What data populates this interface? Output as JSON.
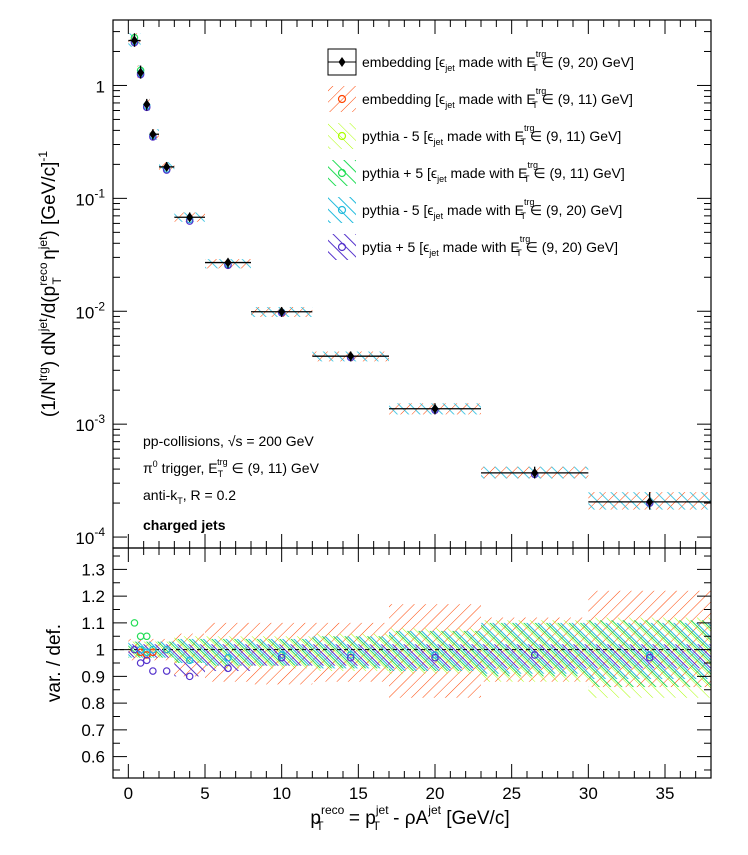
{
  "chart_data": [
    {
      "type": "scatter",
      "panel": "top",
      "y_scale": "log",
      "ylim": [
        8e-05,
        3.8
      ],
      "xlim": [
        -1,
        38
      ],
      "ylabel_parts": {
        "a": "(1/N",
        "a_sup": "trg",
        "b": ") dN",
        "b_sup": "jet",
        "c": "/d(p",
        "c_sup": "reco",
        "c_sub": "T",
        "d": " η",
        "d_sup": "jet",
        "e": ") [GeV/c]",
        "e_sup": "-1"
      },
      "y_ticks": [
        {
          "v": 0.0001,
          "base": "10",
          "exp": "-4"
        },
        {
          "v": 0.001,
          "base": "10",
          "exp": "-3"
        },
        {
          "v": 0.01,
          "base": "10",
          "exp": "-2"
        },
        {
          "v": 0.1,
          "base": "10",
          "exp": "-1"
        },
        {
          "v": 1,
          "base": "1",
          "exp": ""
        }
      ],
      "annotations": {
        "line1": "pp-collisions, ",
        "line1_sqrt": "√s",
        "line1_end": " = 200 GeV",
        "line2_a": "π",
        "line2_sup": "0",
        "line2_b": " trigger, E",
        "line2_sub": "T",
        "line2_sup2": "trg",
        "line2_c": " ∈ (9, 11) GeV",
        "line3_a": "anti-k",
        "line3_sub": "T",
        "line3_b": ", R = 0.2",
        "line4": "charged jets"
      },
      "legend_placement": "top-right",
      "legend": [
        {
          "pre": "embedding [ϵ",
          "sub": "jet",
          "mid": " made with E",
          "sup2": "trg",
          "sub2": "T",
          "post": " ∈ (9, 20) GeV]",
          "color": "#000000",
          "marker": "filled-diamond"
        },
        {
          "pre": "embedding [ϵ",
          "sub": "jet",
          "mid": " made with E",
          "sup2": "trg",
          "sub2": "T",
          "post": " ∈ (9, 11) GeV]",
          "color": "#ff4400",
          "marker": "open-circle"
        },
        {
          "pre": "pythia - 5 [ϵ",
          "sub": "jet",
          "mid": " made with E",
          "sup2": "trg",
          "sub2": "T",
          "post": " ∈ (9, 11) GeV]",
          "color": "#aaff00",
          "marker": "open-circle"
        },
        {
          "pre": "pythia + 5 [ϵ",
          "sub": "jet",
          "mid": " made with E",
          "sup2": "trg",
          "sub2": "T",
          "post": " ∈ (9, 11) GeV]",
          "color": "#22dd55",
          "marker": "open-circle"
        },
        {
          "pre": "pythia - 5 [ϵ",
          "sub": "jet",
          "mid": " made with E",
          "sup2": "trg",
          "sub2": "T",
          "post": " ∈ (9, 20) GeV]",
          "color": "#22bbdd",
          "marker": "open-circle"
        },
        {
          "pre": "pytia + 5 [ϵ",
          "sub": "jet",
          "mid": " made with E",
          "sup2": "trg",
          "sub2": "T",
          "post": " ∈ (9, 20) GeV]",
          "color": "#5533cc",
          "marker": "open-circle"
        }
      ],
      "points": [
        {
          "x": 0.4,
          "y": 2.5,
          "ymax": 2.9,
          "ymin": 2.2,
          "xlo": 0,
          "xhi": 0.8
        },
        {
          "x": 0.8,
          "y": 1.3,
          "ymax": 1.5,
          "ymin": 1.15,
          "xlo": 0.6,
          "xhi": 1.0
        },
        {
          "x": 1.2,
          "y": 0.68,
          "ymax": 0.76,
          "ymin": 0.6,
          "xlo": 1.0,
          "xhi": 1.4
        },
        {
          "x": 1.6,
          "y": 0.37,
          "ymax": 0.41,
          "ymin": 0.33,
          "xlo": 1.4,
          "xhi": 2.0
        },
        {
          "x": 2.5,
          "y": 0.19,
          "ymax": 0.21,
          "ymin": 0.175,
          "xlo": 2.0,
          "xhi": 3.0
        },
        {
          "x": 4.0,
          "y": 0.068,
          "ymax": 0.075,
          "ymin": 0.062,
          "xlo": 3.0,
          "xhi": 5.0
        },
        {
          "x": 6.5,
          "y": 0.027,
          "ymax": 0.029,
          "ymin": 0.024,
          "xlo": 5.0,
          "xhi": 8.0
        },
        {
          "x": 10.0,
          "y": 0.0099,
          "ymax": 0.0109,
          "ymin": 0.0089,
          "xlo": 8.0,
          "xhi": 12.0
        },
        {
          "x": 14.5,
          "y": 0.004,
          "ymax": 0.0044,
          "ymin": 0.0036,
          "xlo": 12.0,
          "xhi": 17.0
        },
        {
          "x": 20.0,
          "y": 0.00137,
          "ymax": 0.00153,
          "ymin": 0.00122,
          "xlo": 17.0,
          "xhi": 23.0
        },
        {
          "x": 26.5,
          "y": 0.00037,
          "ymax": 0.00042,
          "ymin": 0.00033,
          "xlo": 23.0,
          "xhi": 30.0
        },
        {
          "x": 34.0,
          "y": 0.000205,
          "ymax": 0.00025,
          "ymin": 0.000175,
          "xlo": 30.0,
          "xhi": 38.0
        }
      ],
      "series_scatter": [
        {
          "color": "#22dd55",
          "x": [
            0.4,
            0.8
          ],
          "y": [
            2.65,
            1.36
          ]
        },
        {
          "color": "#22bbdd",
          "x": [
            0.4,
            0.8,
            1.2,
            1.6,
            2.5,
            4.0,
            6.5,
            10.0,
            14.5,
            20.0,
            26.5,
            34.0
          ],
          "y": [
            2.45,
            1.28,
            0.66,
            0.36,
            0.182,
            0.065,
            0.026,
            0.0098,
            0.0039,
            0.00134,
            0.00036,
            0.0002
          ]
        },
        {
          "color": "#5533cc",
          "x": [
            0.4,
            0.8,
            1.2,
            1.6,
            2.5,
            4.0,
            6.5,
            10.0,
            14.5,
            20.0,
            26.5,
            34.0
          ],
          "y": [
            2.4,
            1.25,
            0.64,
            0.35,
            0.178,
            0.063,
            0.0255,
            0.0097,
            0.0039,
            0.00133,
            0.00036,
            0.0002
          ]
        }
      ]
    },
    {
      "type": "scatter",
      "panel": "bottom",
      "ylabel": "var. / def.",
      "ylim": [
        0.52,
        1.38
      ],
      "xlim": [
        -1,
        38
      ],
      "xlabel_parts": {
        "a": "p",
        "a_sub": "T",
        "a_sup": "reco",
        "b": " = p",
        "b_sub": "T",
        "b_sup": "jet",
        "c": " - ρA",
        "c_sup": "jet",
        "d": " [GeV/c]"
      },
      "y_tick_labels": [
        "0.6",
        "0.7",
        "0.8",
        "0.9",
        "1",
        "1.1",
        "1.2",
        "1.3"
      ],
      "y_tick_values": [
        0.6,
        0.7,
        0.8,
        0.9,
        1.0,
        1.1,
        1.2,
        1.3
      ],
      "x_tick_labels": [
        "0",
        "5",
        "10",
        "15",
        "20",
        "25",
        "30",
        "35"
      ],
      "x_tick_values": [
        0,
        5,
        10,
        15,
        20,
        25,
        30,
        35
      ],
      "reference_line": 1.0,
      "bands": [
        {
          "color": "#ff4400",
          "bins": [
            [
              0,
              3,
              0.96,
              1.04
            ],
            [
              3,
              5,
              0.9,
              1.06
            ],
            [
              5,
              8,
              0.88,
              1.1
            ],
            [
              8,
              12,
              0.87,
              1.1
            ],
            [
              12,
              17,
              0.88,
              1.1
            ],
            [
              17,
              23,
              0.82,
              1.17
            ],
            [
              23,
              30,
              0.88,
              1.12
            ],
            [
              30,
              38,
              0.86,
              1.22
            ]
          ]
        },
        {
          "color": "#aaff00",
          "bins": [
            [
              0,
              3,
              0.97,
              1.03
            ],
            [
              3,
              5,
              0.95,
              1.05
            ],
            [
              5,
              8,
              0.93,
              1.05
            ],
            [
              8,
              12,
              0.93,
              1.05
            ],
            [
              12,
              17,
              0.92,
              1.06
            ],
            [
              17,
              23,
              0.91,
              1.08
            ],
            [
              23,
              30,
              0.88,
              1.11
            ],
            [
              30,
              38,
              0.82,
              1.12
            ]
          ]
        },
        {
          "color": "#22dd55",
          "bins": [
            [
              0,
              3,
              0.97,
              1.03
            ],
            [
              3,
              5,
              0.95,
              1.04
            ],
            [
              5,
              8,
              0.94,
              1.04
            ],
            [
              8,
              12,
              0.94,
              1.04
            ],
            [
              12,
              17,
              0.93,
              1.05
            ],
            [
              17,
              23,
              0.92,
              1.07
            ],
            [
              23,
              30,
              0.9,
              1.1
            ],
            [
              30,
              38,
              0.86,
              1.11
            ]
          ]
        },
        {
          "color": "#22bbdd",
          "bins": [
            [
              0,
              3,
              0.97,
              1.03
            ],
            [
              3,
              5,
              0.95,
              1.04
            ],
            [
              5,
              8,
              0.94,
              1.04
            ],
            [
              8,
              12,
              0.94,
              1.04
            ],
            [
              12,
              17,
              0.93,
              1.05
            ],
            [
              17,
              23,
              0.92,
              1.07
            ],
            [
              23,
              30,
              0.91,
              1.1
            ],
            [
              30,
              38,
              0.89,
              1.1
            ]
          ]
        },
        {
          "color": "#5533cc",
          "bins": [
            [
              0,
              3,
              0.97,
              1.02
            ],
            [
              3,
              5,
              0.9,
              1.02
            ],
            [
              5,
              8,
              0.92,
              1.02
            ],
            [
              8,
              12,
              0.94,
              1.02
            ],
            [
              12,
              17,
              0.94,
              1.02
            ],
            [
              17,
              23,
              0.93,
              1.02
            ],
            [
              23,
              30,
              0.93,
              1.02
            ],
            [
              30,
              38,
              0.93,
              1.02
            ]
          ]
        }
      ],
      "series": [
        {
          "color": "#22dd55",
          "x": [
            0.4,
            0.8,
            1.2
          ],
          "y": [
            1.1,
            1.05,
            1.05
          ]
        },
        {
          "color": "#ff4400",
          "x": [
            0.8,
            1.2,
            1.6,
            2.5
          ],
          "y": [
            0.99,
            0.98,
            0.99,
            1.0
          ]
        },
        {
          "color": "#22bbdd",
          "x": [
            0.8,
            1.2,
            1.6,
            2.5,
            4.0,
            6.5,
            10.0,
            14.5,
            20.0,
            26.5,
            34.0
          ],
          "y": [
            1.0,
            0.99,
            1.0,
            1.0,
            0.96,
            0.97,
            0.98,
            0.98,
            0.98,
            0.98,
            0.98
          ]
        },
        {
          "color": "#5533cc",
          "x": [
            0.4,
            0.8,
            1.2,
            1.6,
            2.5,
            4.0,
            6.5,
            10.0,
            14.5,
            20.0,
            26.5,
            34.0
          ],
          "y": [
            1.0,
            0.95,
            0.96,
            0.92,
            0.92,
            0.9,
            0.93,
            0.97,
            0.97,
            0.97,
            0.98,
            0.97
          ]
        }
      ]
    }
  ]
}
